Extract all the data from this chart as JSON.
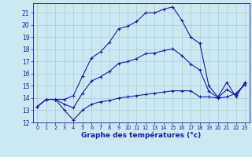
{
  "xlabel": "Graphe des températures (°c)",
  "xlim": [
    -0.5,
    23.5
  ],
  "ylim": [
    12,
    21.8
  ],
  "yticks": [
    12,
    13,
    14,
    15,
    16,
    17,
    18,
    19,
    20,
    21
  ],
  "xticks": [
    0,
    1,
    2,
    3,
    4,
    5,
    6,
    7,
    8,
    9,
    10,
    11,
    12,
    13,
    14,
    15,
    16,
    17,
    18,
    19,
    20,
    21,
    22,
    23
  ],
  "bg_color": "#cce8f0",
  "line_color": "#1a1aaa",
  "grid_color": "#aaccdd",
  "curve_main": {
    "x": [
      0,
      1,
      2,
      3,
      4,
      5,
      6,
      7,
      8,
      9,
      10,
      11,
      12,
      13,
      14,
      15,
      16,
      17,
      18,
      19,
      20,
      21,
      22,
      23
    ],
    "y": [
      13.3,
      13.9,
      13.9,
      13.9,
      14.2,
      15.8,
      17.3,
      17.8,
      18.6,
      19.7,
      19.9,
      20.3,
      21.0,
      21.0,
      21.3,
      21.5,
      20.4,
      19.0,
      18.5,
      15.0,
      14.1,
      15.3,
      14.1,
      15.3
    ]
  },
  "curve_min": {
    "x": [
      0,
      1,
      2,
      3,
      4,
      5,
      6,
      7,
      8,
      9,
      10,
      11,
      12,
      13,
      14,
      15,
      16,
      17,
      18,
      19,
      20,
      21,
      22,
      23
    ],
    "y": [
      13.3,
      13.9,
      13.9,
      13.0,
      12.2,
      13.0,
      13.5,
      13.7,
      13.8,
      14.0,
      14.1,
      14.2,
      14.3,
      14.4,
      14.5,
      14.6,
      14.6,
      14.6,
      14.1,
      14.1,
      14.0,
      14.1,
      14.4,
      15.1
    ]
  },
  "curve_avg": {
    "x": [
      0,
      1,
      2,
      3,
      4,
      5,
      6,
      7,
      8,
      9,
      10,
      11,
      12,
      13,
      14,
      15,
      16,
      17,
      18,
      19,
      20,
      21,
      22,
      23
    ],
    "y": [
      13.3,
      13.9,
      13.9,
      13.5,
      13.2,
      14.4,
      15.4,
      15.75,
      16.2,
      16.85,
      17.0,
      17.25,
      17.65,
      17.7,
      17.9,
      18.05,
      17.5,
      16.8,
      16.3,
      14.55,
      14.05,
      14.7,
      14.25,
      15.2
    ]
  }
}
